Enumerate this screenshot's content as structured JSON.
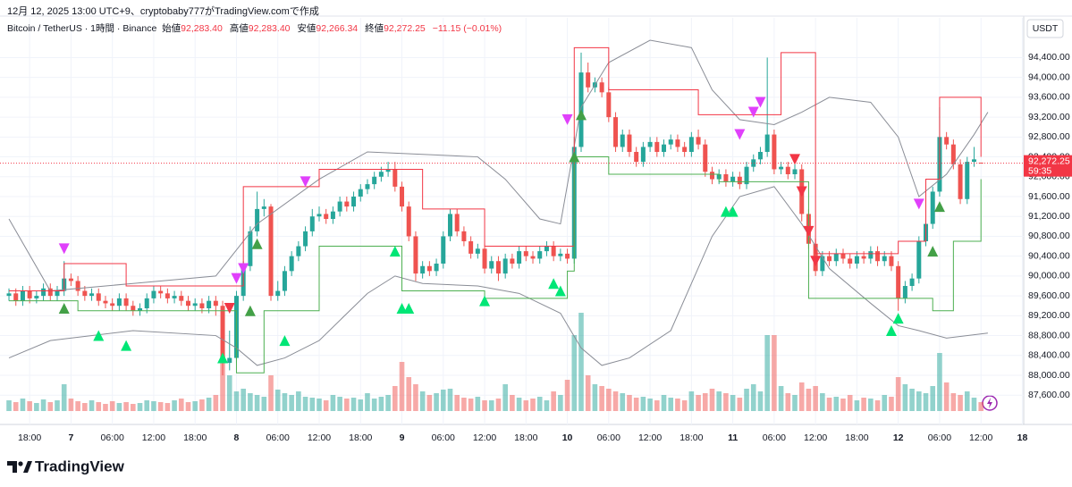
{
  "header": {
    "created": "12月 12, 2025 13:00 UTC+9、cryptobaby777がTradingView.comで作成",
    "symbol": "Bitcoin / TetherUS · 1時間 · Binance",
    "open_label": "始値",
    "open": "92,283.40",
    "high_label": "高値",
    "high": "92,283.40",
    "low_label": "安値",
    "low": "92,266.34",
    "close_label": "終値",
    "close": "92,272.25",
    "change": "−11.15 (−0.01%)"
  },
  "footer": {
    "brand": "TradingView"
  },
  "chart_data": {
    "type": "candlestick",
    "unit": "USDT",
    "up_color": "#26a69a",
    "down_color": "#ef5350",
    "grid": true,
    "xlim": [
      -1.3,
      147.2
    ],
    "ylim": [
      87100,
      95200
    ],
    "xticks": [
      {
        "value": 3,
        "label": "18:00"
      },
      {
        "value": 9,
        "label": "7"
      },
      {
        "value": 15,
        "label": "06:00"
      },
      {
        "value": 21,
        "label": "12:00"
      },
      {
        "value": 27,
        "label": "18:00"
      },
      {
        "value": 33,
        "label": "8"
      },
      {
        "value": 39,
        "label": "06:00"
      },
      {
        "value": 45,
        "label": "12:00"
      },
      {
        "value": 51,
        "label": "18:00"
      },
      {
        "value": 57,
        "label": "9"
      },
      {
        "value": 63,
        "label": "06:00"
      },
      {
        "value": 69,
        "label": "12:00"
      },
      {
        "value": 75,
        "label": "18:00"
      },
      {
        "value": 81,
        "label": "10"
      },
      {
        "value": 87,
        "label": "06:00"
      },
      {
        "value": 93,
        "label": "12:00"
      },
      {
        "value": 99,
        "label": "18:00"
      },
      {
        "value": 105,
        "label": "11"
      },
      {
        "value": 111,
        "label": "06:00"
      },
      {
        "value": 117,
        "label": "12:00"
      },
      {
        "value": 123,
        "label": "18:00"
      },
      {
        "value": 129,
        "label": "12"
      },
      {
        "value": 135,
        "label": "06:00"
      },
      {
        "value": 141,
        "label": "12:00"
      },
      {
        "value": 147,
        "label": "18"
      }
    ],
    "yticks": [
      {
        "value": 87600,
        "label": "87,600.00"
      },
      {
        "value": 88000,
        "label": "88,000.00"
      },
      {
        "value": 88400,
        "label": "88,400.00"
      },
      {
        "value": 88800,
        "label": "88,800.00"
      },
      {
        "value": 89200,
        "label": "89,200.00"
      },
      {
        "value": 89600,
        "label": "89,600.00"
      },
      {
        "value": 90000,
        "label": "90,000.00"
      },
      {
        "value": 90400,
        "label": "90,400.00"
      },
      {
        "value": 90800,
        "label": "90,800.00"
      },
      {
        "value": 91200,
        "label": "91,200.00"
      },
      {
        "value": 91600,
        "label": "91,600.00"
      },
      {
        "value": 92000,
        "label": "92,000.00"
      },
      {
        "value": 92400,
        "label": "92,400.00"
      },
      {
        "value": 92800,
        "label": "92,800.00"
      },
      {
        "value": 93200,
        "label": "93,200.00"
      },
      {
        "value": 93600,
        "label": "93,600.00"
      },
      {
        "value": 94000,
        "label": "94,000.00"
      },
      {
        "value": 94400,
        "label": "94,400.00"
      }
    ],
    "open": [
      89600,
      89650,
      89500,
      89700,
      89550,
      89600,
      89750,
      89600,
      89700,
      89950,
      89900,
      89700,
      89600,
      89650,
      89500,
      89450,
      89400,
      89550,
      89400,
      89300,
      89350,
      89550,
      89700,
      89650,
      89550,
      89600,
      89500,
      89400,
      89450,
      89350,
      89500,
      89400,
      88250,
      88350,
      89600,
      90200,
      90900,
      91350,
      91400,
      89600,
      89700,
      90100,
      90400,
      90600,
      90900,
      91200,
      91250,
      91150,
      91300,
      91500,
      91400,
      91600,
      91750,
      91850,
      92000,
      92100,
      92150,
      91800,
      91400,
      90800,
      90050,
      90200,
      90100,
      90250,
      90800,
      91250,
      90900,
      90700,
      90450,
      90550,
      90150,
      90300,
      90050,
      90350,
      90250,
      90500,
      90400,
      90350,
      90500,
      90600,
      90400,
      90450,
      90350,
      92600,
      94100,
      93800,
      93900,
      93700,
      93200,
      92600,
      92850,
      92500,
      92300,
      92600,
      92700,
      92500,
      92650,
      92750,
      92600,
      92500,
      92800,
      92650,
      92100,
      91950,
      92050,
      91900,
      92000,
      91850,
      92200,
      92350,
      92500,
      92850,
      92150,
      92200,
      92050,
      92150,
      91250,
      90650,
      90100,
      90400,
      90300,
      90450,
      90350,
      90250,
      90400,
      90350,
      90500,
      90300,
      90400,
      90200,
      89550,
      89800,
      89950,
      90700,
      91050,
      91700,
      92800,
      92650,
      92250,
      91550,
      92300,
      92283.4
    ],
    "high": [
      89750,
      89750,
      89800,
      89800,
      89700,
      89850,
      89850,
      89800,
      90300,
      90050,
      90000,
      89800,
      89750,
      89750,
      89600,
      89550,
      89650,
      89650,
      89500,
      89450,
      89650,
      89800,
      89800,
      89750,
      89700,
      89700,
      89600,
      89550,
      89550,
      89600,
      89600,
      89500,
      88900,
      89700,
      90300,
      91000,
      91700,
      91550,
      91450,
      89900,
      90200,
      90500,
      90700,
      91000,
      91350,
      91400,
      91350,
      91400,
      91600,
      91600,
      91700,
      91850,
      91950,
      92100,
      92200,
      92300,
      92300,
      91900,
      91500,
      90900,
      90300,
      90300,
      90350,
      90900,
      91350,
      91350,
      91000,
      90800,
      90650,
      90650,
      90400,
      90400,
      90450,
      90450,
      90600,
      90600,
      90500,
      90600,
      90700,
      90700,
      90550,
      90550,
      92800,
      94500,
      94300,
      94000,
      94000,
      93800,
      93300,
      92950,
      92950,
      92600,
      92700,
      92800,
      92800,
      92750,
      92850,
      92850,
      92700,
      92900,
      92950,
      92750,
      92200,
      92150,
      92150,
      92100,
      92100,
      92300,
      92450,
      92600,
      94400,
      92950,
      92300,
      92300,
      92250,
      92250,
      91350,
      90750,
      90500,
      90500,
      90550,
      90550,
      90450,
      90500,
      90500,
      90600,
      90600,
      90500,
      90500,
      90300,
      89900,
      90050,
      90800,
      91150,
      91800,
      93400,
      92900,
      92750,
      92350,
      92400,
      92600,
      92283.4
    ],
    "low": [
      89500,
      89400,
      89400,
      89450,
      89450,
      89500,
      89500,
      89500,
      89600,
      89800,
      89600,
      89500,
      89500,
      89400,
      89350,
      89300,
      89300,
      89300,
      89200,
      89200,
      89250,
      89450,
      89550,
      89450,
      89450,
      89400,
      89300,
      89300,
      89250,
      89250,
      89200,
      88000,
      88100,
      88250,
      89500,
      90100,
      90800,
      91200,
      89500,
      89500,
      89600,
      90000,
      90300,
      90500,
      90800,
      91100,
      91050,
      91050,
      91200,
      91300,
      91300,
      91500,
      91650,
      91750,
      91900,
      92000,
      91700,
      91300,
      90700,
      89900,
      89950,
      90000,
      90000,
      90150,
      90700,
      90800,
      90600,
      90350,
      90350,
      90050,
      90050,
      89900,
      89950,
      90150,
      90150,
      90300,
      90250,
      90250,
      90400,
      90300,
      90300,
      90250,
      90250,
      92500,
      93700,
      93700,
      93600,
      93100,
      92500,
      92500,
      92400,
      92200,
      92200,
      92500,
      92400,
      92400,
      92550,
      92500,
      92400,
      92400,
      92550,
      92000,
      91850,
      91850,
      91800,
      91800,
      91750,
      91750,
      92100,
      92250,
      92400,
      92050,
      92050,
      91950,
      91950,
      91100,
      90550,
      90000,
      90000,
      90200,
      90200,
      90250,
      90150,
      90150,
      90250,
      90250,
      90200,
      90200,
      90100,
      89300,
      89450,
      89700,
      89850,
      90600,
      90950,
      91600,
      92550,
      92150,
      91450,
      91450,
      92200,
      92266.34
    ],
    "close": [
      89650,
      89500,
      89700,
      89550,
      89600,
      89750,
      89600,
      89700,
      89950,
      89900,
      89700,
      89600,
      89650,
      89500,
      89450,
      89400,
      89550,
      89400,
      89300,
      89350,
      89550,
      89700,
      89650,
      89550,
      89600,
      89500,
      89400,
      89450,
      89350,
      89500,
      89400,
      88250,
      88350,
      89600,
      90200,
      90900,
      91350,
      91400,
      89600,
      89700,
      90100,
      90400,
      90600,
      90900,
      91200,
      91250,
      91150,
      91300,
      91500,
      91400,
      91600,
      91750,
      91850,
      92000,
      92100,
      92150,
      91800,
      91400,
      90800,
      90050,
      90200,
      90100,
      90250,
      90800,
      91250,
      90900,
      90700,
      90450,
      90550,
      90150,
      90300,
      90050,
      90350,
      90250,
      90500,
      90400,
      90350,
      90500,
      90600,
      90400,
      90450,
      90350,
      92600,
      94100,
      93800,
      93900,
      93700,
      93200,
      92600,
      92850,
      92500,
      92300,
      92600,
      92700,
      92500,
      92650,
      92750,
      92600,
      92500,
      92800,
      92650,
      92100,
      91950,
      92050,
      91900,
      92000,
      91850,
      92200,
      92350,
      92500,
      92850,
      92150,
      92200,
      92050,
      92150,
      91250,
      90650,
      90100,
      90400,
      90300,
      90450,
      90350,
      90250,
      90400,
      90350,
      90500,
      90300,
      90400,
      90200,
      89550,
      89800,
      89950,
      90700,
      91050,
      91700,
      92800,
      92650,
      92250,
      91550,
      92300,
      92350,
      92272.25
    ],
    "volume": [
      12,
      10,
      14,
      11,
      9,
      13,
      10,
      12,
      30,
      14,
      11,
      9,
      12,
      10,
      8,
      11,
      9,
      10,
      8,
      9,
      12,
      11,
      10,
      9,
      12,
      14,
      10,
      11,
      13,
      15,
      18,
      62,
      40,
      22,
      25,
      20,
      18,
      16,
      40,
      24,
      20,
      18,
      22,
      16,
      15,
      14,
      12,
      18,
      16,
      14,
      15,
      13,
      20,
      14,
      16,
      18,
      28,
      55,
      38,
      30,
      22,
      18,
      20,
      24,
      25,
      18,
      15,
      14,
      16,
      12,
      12,
      14,
      30,
      18,
      15,
      12,
      14,
      16,
      12,
      22,
      18,
      35,
      85,
      110,
      40,
      30,
      28,
      25,
      22,
      20,
      18,
      15,
      16,
      14,
      12,
      18,
      15,
      14,
      12,
      22,
      18,
      20,
      25,
      22,
      20,
      18,
      15,
      25,
      30,
      22,
      85,
      85,
      28,
      20,
      18,
      32,
      25,
      28,
      20,
      15,
      16,
      14,
      18,
      12,
      15,
      14,
      12,
      18,
      16,
      38,
      30,
      25,
      22,
      20,
      28,
      65,
      32,
      20,
      18,
      22,
      15,
      10
    ],
    "overlays": [
      {
        "kind": "line",
        "color": "#8a8d96",
        "x": [
          0,
          6,
          18,
          30,
          36,
          45,
          52,
          60,
          68,
          72,
          77,
          80,
          83,
          87,
          93,
          99,
          102,
          106,
          111,
          115,
          119,
          125,
          129,
          132,
          136,
          140,
          142
        ],
        "y": [
          91150,
          89700,
          89850,
          90000,
          91050,
          91950,
          92500,
          92450,
          92400,
          91950,
          91150,
          91050,
          93400,
          94300,
          94750,
          94600,
          93750,
          93150,
          93050,
          93300,
          93600,
          93500,
          92800,
          91600,
          92050,
          92850,
          93300
        ]
      },
      {
        "kind": "line",
        "color": "#8a8d96",
        "x": [
          0,
          6,
          18,
          30,
          33,
          36,
          40,
          45,
          52,
          56,
          60,
          68,
          74,
          80,
          83,
          86,
          90,
          96,
          102,
          106,
          111,
          115,
          119,
          125,
          129,
          132,
          136,
          142
        ],
        "y": [
          88350,
          88700,
          88900,
          88800,
          88550,
          88200,
          88350,
          88700,
          89650,
          90000,
          89850,
          89800,
          89650,
          89250,
          88550,
          88200,
          88350,
          88900,
          90800,
          91600,
          91800,
          91050,
          90150,
          89450,
          89000,
          88900,
          88750,
          88850
        ]
      },
      {
        "kind": "step",
        "color": "#f23645",
        "x": [
          0,
          8,
          17,
          34,
          45,
          60,
          69,
          82,
          87,
          100,
          112,
          117,
          129,
          133,
          135,
          141
        ],
        "y": [
          89700,
          90250,
          89800,
          91800,
          92150,
          91350,
          90600,
          94600,
          93750,
          93250,
          94500,
          90450,
          90700,
          91950,
          93600,
          92400
        ]
      },
      {
        "kind": "step",
        "color": "#4caf50",
        "x": [
          0,
          10,
          33,
          37,
          45,
          57,
          69,
          81,
          82,
          87,
          103,
          116,
          134,
          137,
          141
        ],
        "y": [
          89500,
          89300,
          88050,
          89300,
          90600,
          89700,
          89550,
          90100,
          92400,
          92050,
          91900,
          89550,
          89300,
          90700,
          91950
        ]
      }
    ],
    "signals": [
      {
        "shape": "down",
        "color": "#e040fb",
        "x": [
          8,
          33,
          34,
          43,
          81,
          106,
          108,
          109,
          132
        ],
        "y": [
          90550,
          89950,
          90150,
          91900,
          93150,
          92850,
          93300,
          93500,
          91450
        ]
      },
      {
        "shape": "down",
        "color": "#f23645",
        "x": [
          32,
          114,
          115,
          116,
          117
        ],
        "y": [
          89350,
          92350,
          91700,
          90900,
          90300
        ]
      },
      {
        "shape": "up",
        "color": "#00e676",
        "x": [
          13,
          17,
          31,
          40,
          56,
          57,
          58,
          69,
          79,
          80,
          104,
          105,
          128,
          129
        ],
        "y": [
          88800,
          88600,
          88350,
          88700,
          90500,
          89350,
          89350,
          89500,
          89850,
          89700,
          91300,
          91300,
          88900,
          89150
        ]
      },
      {
        "shape": "up",
        "color": "#43a047",
        "x": [
          8,
          35,
          36,
          82,
          83,
          134,
          135
        ],
        "y": [
          89350,
          89300,
          90650,
          92400,
          93250,
          90500,
          91400
        ]
      }
    ],
    "last_price": {
      "value": 92272.25,
      "label": "92,272.25",
      "color": "#f23645"
    },
    "countdown": "59:35"
  }
}
